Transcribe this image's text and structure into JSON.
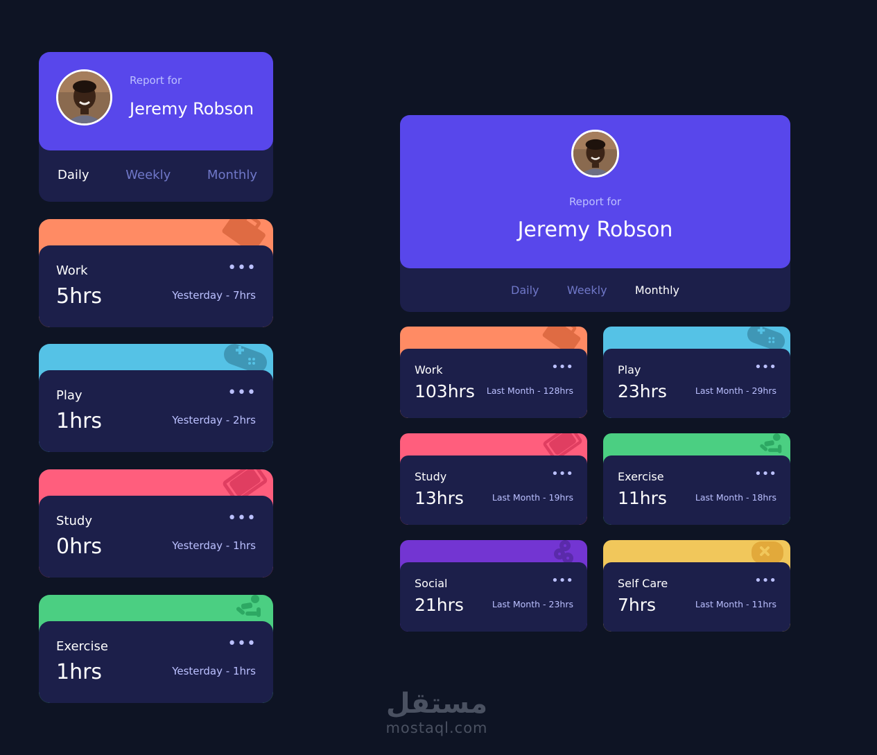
{
  "profile": {
    "report_label": "Report for",
    "name": "Jeremy Robson"
  },
  "mobile": {
    "tabs": [
      {
        "label": "Daily",
        "active": true
      },
      {
        "label": "Weekly",
        "active": false
      },
      {
        "label": "Monthly",
        "active": false
      }
    ],
    "cards": [
      {
        "title": "Work",
        "hours": "5hrs",
        "previous": "Yesterday - 7hrs",
        "color": "#ff8b64",
        "icon": "briefcase-icon"
      },
      {
        "title": "Play",
        "hours": "1hrs",
        "previous": "Yesterday - 2hrs",
        "color": "#55c2e6",
        "icon": "gamepad-icon"
      },
      {
        "title": "Study",
        "hours": "0hrs",
        "previous": "Yesterday - 1hrs",
        "color": "#ff5e7d",
        "icon": "book-icon"
      },
      {
        "title": "Exercise",
        "hours": "1hrs",
        "previous": "Yesterday - 1hrs",
        "color": "#4bcf82",
        "icon": "running-icon"
      }
    ]
  },
  "desktop": {
    "tabs": [
      {
        "label": "Daily",
        "active": false
      },
      {
        "label": "Weekly",
        "active": false
      },
      {
        "label": "Monthly",
        "active": true
      }
    ],
    "cards": [
      {
        "title": "Work",
        "hours": "103hrs",
        "previous": "Last Month - 128hrs",
        "color": "#ff8b64",
        "icon": "briefcase-icon"
      },
      {
        "title": "Play",
        "hours": "23hrs",
        "previous": "Last Month - 29hrs",
        "color": "#55c2e6",
        "icon": "gamepad-icon"
      },
      {
        "title": "Study",
        "hours": "13hrs",
        "previous": "Last Month - 19hrs",
        "color": "#ff5e7d",
        "icon": "book-icon"
      },
      {
        "title": "Exercise",
        "hours": "11hrs",
        "previous": "Last Month - 18hrs",
        "color": "#4bcf82",
        "icon": "running-icon"
      },
      {
        "title": "Social",
        "hours": "21hrs",
        "previous": "Last Month - 23hrs",
        "color": "#7335d2",
        "icon": "social-icon"
      },
      {
        "title": "Self Care",
        "hours": "7hrs",
        "previous": "Last Month - 11hrs",
        "color": "#f1c75b",
        "icon": "self-care-icon"
      }
    ]
  },
  "menu_glyph": "•••",
  "watermark": {
    "arabic": "مستقل",
    "latin": "mostaql.com"
  },
  "colors": {
    "background": "#0e1424",
    "card": "#1c1f4a",
    "accent": "#5847eb"
  }
}
